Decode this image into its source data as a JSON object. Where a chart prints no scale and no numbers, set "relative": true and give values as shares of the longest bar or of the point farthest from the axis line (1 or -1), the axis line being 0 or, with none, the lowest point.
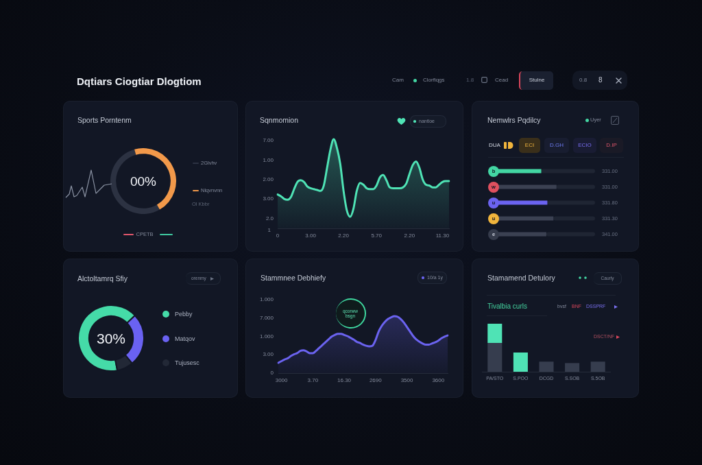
{
  "chart_data": [
    {
      "type": "other",
      "title": "Dqtiars Ciogtiar Dlogtiom",
      "annotations": [
        "Cam",
        "Clorfiqgs",
        "1.8",
        "Cead",
        "Stulne",
        "0.8",
        "8"
      ]
    },
    {
      "type": "donut",
      "title": "Sports Porntenm",
      "categories": [
        "2Glvhv",
        "Nlqvnvnn"
      ],
      "values": [
        54,
        46
      ],
      "colors": [
        "#2c3242",
        "#f2994a"
      ],
      "legend": "right",
      "annotations": [
        "00%",
        "Ol Kbbr",
        "CPETB"
      ]
    },
    {
      "type": "area",
      "title": "Sqnmomion",
      "relative": true,
      "categories": [
        "0",
        null,
        null,
        null,
        null,
        null,
        null,
        null,
        null,
        null,
        "3.00",
        null,
        null,
        null,
        null,
        null,
        null,
        null,
        null,
        null,
        "2.20",
        null,
        null,
        null,
        null,
        null,
        null,
        null,
        null,
        null,
        "5.70",
        null,
        null,
        null,
        null,
        null,
        null,
        null,
        null,
        null,
        "2.20",
        null,
        null,
        null,
        null,
        null,
        null,
        null,
        null,
        null,
        "11.30",
        null,
        null
      ],
      "series": [
        {
          "name": "nantloe",
          "color": "#4fe3b5",
          "values": [
            0.38,
            0.36,
            0.33,
            0.32,
            0.35,
            0.44,
            0.52,
            0.54,
            0.52,
            0.47,
            0.45,
            0.44,
            0.43,
            0.42,
            0.48,
            0.68,
            0.88,
            1,
            0.9,
            0.72,
            0.42,
            0.2,
            0.13,
            0.22,
            0.42,
            0.51,
            0.49,
            0.45,
            0.44,
            0.44,
            0.48,
            0.57,
            0.6,
            0.54,
            0.46,
            0.45,
            0.45,
            0.45,
            0.46,
            0.5,
            0.61,
            0.71,
            0.75,
            0.68,
            0.55,
            0.49,
            0.48,
            0.46,
            0.46,
            0.49,
            0.52,
            0.53,
            0.53
          ]
        }
      ],
      "legend": "top right",
      "annotations": [
        "7.00",
        "1.00",
        "2.00",
        "3.00",
        "2.0",
        "1"
      ]
    },
    {
      "type": "bar",
      "orientation": "horizontal",
      "stacked": true,
      "relative": true,
      "title": "Nemwlrs Pqdilcy",
      "categories": [
        "b",
        "w",
        "u",
        "u",
        "e"
      ],
      "series": [
        {
          "colors": [
            "#43d6a3",
            "#3b4152",
            "#6b63f0",
            "#3b4152",
            "#3b4152"
          ],
          "values": [
            0.47,
            0.62,
            0.53,
            0.59,
            0.52
          ]
        },
        {
          "color": "#1f2533",
          "values": [
            0.53,
            0.38,
            0.47,
            0.41,
            0.48
          ]
        }
      ],
      "annotations": [
        "Uyer",
        "DUA",
        "ECI",
        "D.GH",
        "ECIO",
        "D.IP",
        "331.00",
        "331.00",
        "331.80",
        "331.30",
        "341.00"
      ]
    },
    {
      "type": "donut",
      "title": "Alctoltamrq Sfiy",
      "categories": [
        "Pebby",
        "Matqov",
        "Tujusesc"
      ],
      "values": [
        66,
        26,
        8
      ],
      "colors": [
        "#45dba8",
        "#6a62f2",
        "#222836"
      ],
      "legend": "right",
      "annotations": [
        "30%",
        "orenmy"
      ]
    },
    {
      "type": "area",
      "title": "Stammnee Debhiefy",
      "relative": true,
      "categories": [
        null,
        "3000",
        null,
        null,
        null,
        null,
        null,
        null,
        null,
        null,
        null,
        "3.70",
        null,
        null,
        null,
        null,
        null,
        null,
        null,
        null,
        null,
        "16.30",
        null,
        null,
        null,
        null,
        null,
        null,
        null,
        null,
        null,
        "2690",
        null,
        null,
        null,
        null,
        null,
        null,
        null,
        null,
        null,
        "3500",
        null,
        null,
        null,
        null,
        null,
        null,
        null,
        null,
        null,
        "3600",
        null,
        null,
        null
      ],
      "series": [
        {
          "name": "10/a 1y",
          "color": "#6b63f0",
          "values": [
            0.18,
            0.21,
            0.24,
            0.26,
            0.3,
            0.33,
            0.35,
            0.39,
            0.4,
            0.38,
            0.35,
            0.35,
            0.39,
            0.44,
            0.49,
            0.54,
            0.59,
            0.64,
            0.67,
            0.69,
            0.69,
            0.67,
            0.65,
            0.62,
            0.59,
            0.55,
            0.53,
            0.5,
            0.48,
            0.47,
            0.48,
            0.58,
            0.73,
            0.83,
            0.9,
            0.95,
            0.98,
            1,
            0.99,
            0.95,
            0.89,
            0.81,
            0.73,
            0.65,
            0.59,
            0.55,
            0.52,
            0.5,
            0.5,
            0.52,
            0.54,
            0.57,
            0.61,
            0.64,
            0.66
          ]
        }
      ],
      "legend": "top right",
      "annotations": [
        "qcorww bsgn",
        "1.000",
        "7.000",
        "1.000",
        "3.00",
        "0"
      ]
    },
    {
      "type": "bar",
      "stacked": true,
      "relative": true,
      "title": "Stamamend Detulory",
      "subtitle": "Tivalbia curls",
      "categories": [
        "PA/STO",
        "S.POO",
        "DCGD",
        "S.SOB",
        "S.5OB"
      ],
      "series": [
        {
          "color": "#363d4e",
          "values": [
            0.6,
            null,
            0.21,
            0.18,
            0.21
          ]
        },
        {
          "color": "#4fe3b5",
          "values": [
            0.4,
            0.4,
            null,
            null,
            null
          ]
        }
      ],
      "annotations": [
        "Caurly",
        "bvsf",
        "BNF",
        "DSSPRF",
        "DSCT/NF"
      ]
    }
  ]
}
